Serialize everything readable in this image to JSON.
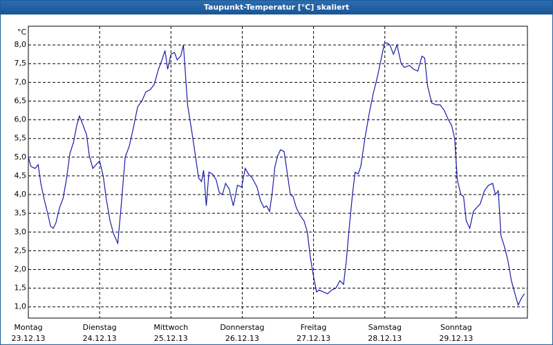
{
  "chart_data": {
    "type": "line",
    "title": "Taupunkt-Temperatur [°C] skaliert",
    "y_unit": "°C",
    "xlim": [
      0,
      168
    ],
    "xticks": [
      {
        "value": 0,
        "label": "Montag",
        "date": "23.12.13"
      },
      {
        "value": 24,
        "label": "Dienstag",
        "date": "24.12.13"
      },
      {
        "value": 48,
        "label": "Mittwoch",
        "date": "25.12.13"
      },
      {
        "value": 72,
        "label": "Donnerstag",
        "date": "26.12.13"
      },
      {
        "value": 96,
        "label": "Freitag",
        "date": "27.12.13"
      },
      {
        "value": 120,
        "label": "Samstag",
        "date": "28.12.13"
      },
      {
        "value": 144,
        "label": "Sonntag",
        "date": "29.12.13"
      }
    ],
    "ylim": [
      0.7,
      8.5
    ],
    "yticks": [
      {
        "value": 1,
        "label": "1,0"
      },
      {
        "value": 1.5,
        "label": "1,5"
      },
      {
        "value": 2,
        "label": "2,0"
      },
      {
        "value": 2.5,
        "label": "2,5"
      },
      {
        "value": 3,
        "label": "3,0"
      },
      {
        "value": 3.5,
        "label": "3,5"
      },
      {
        "value": 4,
        "label": "4,0"
      },
      {
        "value": 4.5,
        "label": "4,5"
      },
      {
        "value": 5,
        "label": "5,0"
      },
      {
        "value": 5.5,
        "label": "5,5"
      },
      {
        "value": 6,
        "label": "6,0"
      },
      {
        "value": 6.5,
        "label": "6,5"
      },
      {
        "value": 7,
        "label": "7,0"
      },
      {
        "value": 7.5,
        "label": "7,5"
      },
      {
        "value": 8,
        "label": "8,0"
      }
    ],
    "grid": true,
    "x": [
      0,
      0.9,
      2.3,
      3.3,
      4.2,
      5.4,
      6.5,
      7.5,
      8.4,
      9.3,
      10.5,
      11.7,
      12.8,
      14,
      15.2,
      16.3,
      17.2,
      18.2,
      19.6,
      20.5,
      21.7,
      22.8,
      24,
      25.2,
      26.3,
      27.5,
      28.7,
      30.1,
      31.2,
      32.6,
      34,
      35.4,
      36.8,
      38.2,
      39.6,
      41,
      42.4,
      43.8,
      45,
      46,
      46.9,
      48,
      49.2,
      50.1,
      51.3,
      52.2,
      53.6,
      55,
      56.4,
      57.3,
      58.3,
      59,
      59.9,
      60.8,
      62,
      63.2,
      64.3,
      65.3,
      66.4,
      67.6,
      69,
      70.4,
      71.8,
      73,
      74.1,
      75.3,
      77,
      78.1,
      79.3,
      80.2,
      81.2,
      82.1,
      83,
      84,
      84.9,
      86.1,
      87.2,
      88.2,
      89.1,
      90.2,
      91.4,
      92.8,
      93.9,
      94.9,
      95.8,
      97,
      97.9,
      99.3,
      100.7,
      102.1,
      103.5,
      104.9,
      106.1,
      107,
      108,
      109.1,
      110,
      111,
      111.9,
      113.3,
      114.7,
      116.1,
      117.5,
      118.7,
      119.9,
      120.8,
      121.7,
      122.9,
      124.1,
      125.5,
      126.6,
      128.3,
      129.7,
      131.1,
      132.5,
      133.4,
      134.4,
      135.8,
      137.2,
      138.6,
      140,
      141.4,
      142.5,
      143.5,
      144.4,
      145.6,
      146.5,
      147.4,
      148.6,
      149.8,
      150.9,
      152.1,
      153.5,
      154.9,
      156.3,
      157.2,
      158.2,
      159.1,
      160.3,
      161.4,
      162.6,
      163.8,
      164.9,
      166.1,
      167
    ],
    "series": [
      {
        "color": "#1a1aa6",
        "values": [
          5.0,
          4.75,
          4.7,
          4.8,
          4.3,
          3.85,
          3.5,
          3.15,
          3.1,
          3.25,
          3.65,
          3.9,
          4.4,
          5.1,
          5.4,
          5.85,
          6.1,
          5.9,
          5.6,
          5.05,
          4.7,
          4.8,
          4.9,
          4.5,
          3.85,
          3.3,
          2.95,
          2.7,
          3.65,
          5.0,
          5.3,
          5.8,
          6.35,
          6.5,
          6.75,
          6.8,
          6.95,
          7.35,
          7.6,
          7.85,
          7.35,
          7.75,
          7.8,
          7.6,
          7.7,
          8.0,
          6.4,
          5.7,
          4.95,
          4.45,
          4.35,
          4.65,
          3.7,
          4.6,
          4.55,
          4.4,
          4.05,
          4.0,
          4.3,
          4.15,
          3.7,
          4.25,
          4.2,
          4.7,
          4.55,
          4.45,
          4.2,
          3.85,
          3.65,
          3.7,
          3.55,
          4.05,
          4.75,
          5.05,
          5.2,
          5.15,
          4.55,
          4.0,
          3.95,
          3.65,
          3.45,
          3.3,
          3.0,
          2.35,
          1.9,
          1.4,
          1.45,
          1.4,
          1.35,
          1.45,
          1.5,
          1.7,
          1.6,
          2.2,
          3.1,
          4.0,
          4.6,
          4.55,
          4.75,
          5.5,
          6.15,
          6.7,
          7.15,
          7.6,
          8.05,
          8.05,
          8.0,
          7.75,
          8.0,
          7.5,
          7.4,
          7.45,
          7.35,
          7.3,
          7.7,
          7.65,
          6.9,
          6.45,
          6.4,
          6.4,
          6.25,
          6.0,
          5.85,
          5.5,
          4.4,
          4.0,
          3.95,
          3.3,
          3.1,
          3.55,
          3.65,
          3.75,
          4.1,
          4.25,
          4.3,
          4.0,
          4.1,
          2.9,
          2.6,
          2.25,
          1.7,
          1.35,
          1.05,
          1.25,
          1.35
        ]
      }
    ]
  }
}
